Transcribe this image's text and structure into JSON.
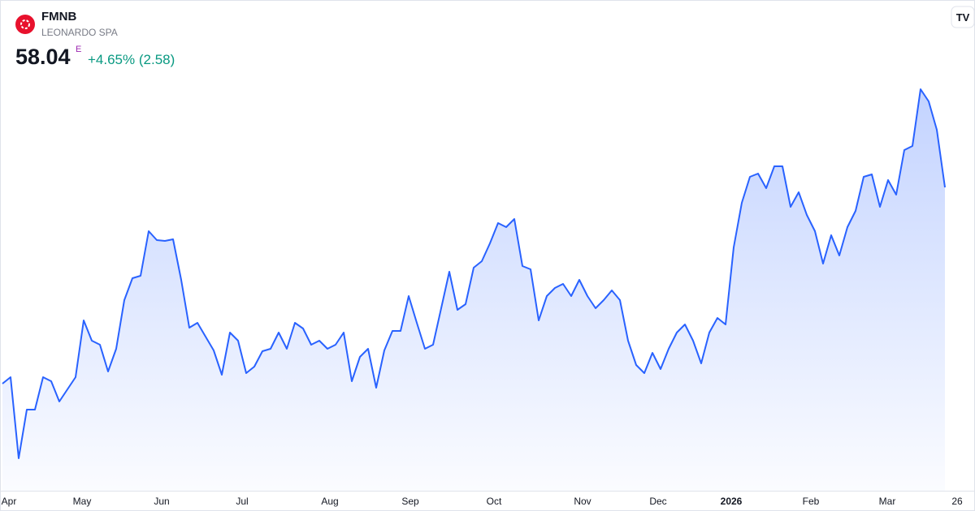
{
  "header": {
    "ticker": "FMNB",
    "company": "LEONARDO SPA",
    "price": "58.04",
    "price_flag": "E",
    "change": "+4.65% (2.58)"
  },
  "chart_data": {
    "type": "area",
    "color": "#2962ff",
    "values": [
      45.94,
      46.34,
      41.34,
      44.34,
      44.34,
      46.34,
      46.09,
      44.84,
      45.59,
      46.34,
      49.84,
      48.59,
      48.34,
      46.69,
      48.09,
      51.09,
      52.44,
      52.59,
      55.34,
      54.79,
      54.74,
      54.84,
      52.34,
      49.39,
      49.69,
      48.84,
      47.99,
      46.49,
      49.09,
      48.59,
      46.59,
      46.99,
      47.94,
      48.09,
      49.09,
      48.09,
      49.69,
      49.34,
      48.34,
      48.59,
      48.09,
      48.34,
      49.09,
      46.09,
      47.59,
      48.09,
      45.69,
      47.99,
      49.19,
      49.19,
      51.34,
      49.69,
      48.09,
      48.34,
      50.59,
      52.84,
      50.49,
      50.84,
      53.09,
      53.49,
      54.59,
      55.84,
      55.59,
      56.09,
      53.19,
      52.99,
      49.84,
      51.34,
      51.84,
      52.09,
      51.34,
      52.34,
      51.34,
      50.59,
      51.09,
      51.69,
      51.09,
      48.59,
      47.09,
      46.59,
      47.84,
      46.84,
      48.09,
      49.09,
      49.59,
      48.59,
      47.19,
      49.09,
      49.99,
      49.59,
      54.34,
      57.09,
      58.69,
      58.89,
      57.99,
      59.34,
      59.34,
      56.84,
      57.74,
      56.34,
      55.34,
      53.34,
      55.09,
      53.84,
      55.59,
      56.59,
      58.69,
      58.84,
      56.84,
      58.49,
      57.59,
      60.34,
      60.59,
      64.09,
      63.34,
      61.59,
      58.04
    ],
    "xlim": [
      0,
      116
    ],
    "ylim": [
      39.34,
      69.59
    ],
    "xticks": [
      {
        "value": 0.8,
        "label": "Apr"
      },
      {
        "value": 9.8,
        "label": "May"
      },
      {
        "value": 19.6,
        "label": "Jun"
      },
      {
        "value": 29.5,
        "label": "Jul"
      },
      {
        "value": 40.3,
        "label": "Aug"
      },
      {
        "value": 50.2,
        "label": "Sep"
      },
      {
        "value": 60.5,
        "label": "Oct"
      },
      {
        "value": 71.4,
        "label": "Nov"
      },
      {
        "value": 80.7,
        "label": "Dec"
      },
      {
        "value": 89.7,
        "label": "2026"
      },
      {
        "value": 99.5,
        "label": "Feb"
      },
      {
        "value": 108.9,
        "label": "Mar"
      },
      {
        "value": 117.5,
        "label": "26"
      }
    ]
  }
}
